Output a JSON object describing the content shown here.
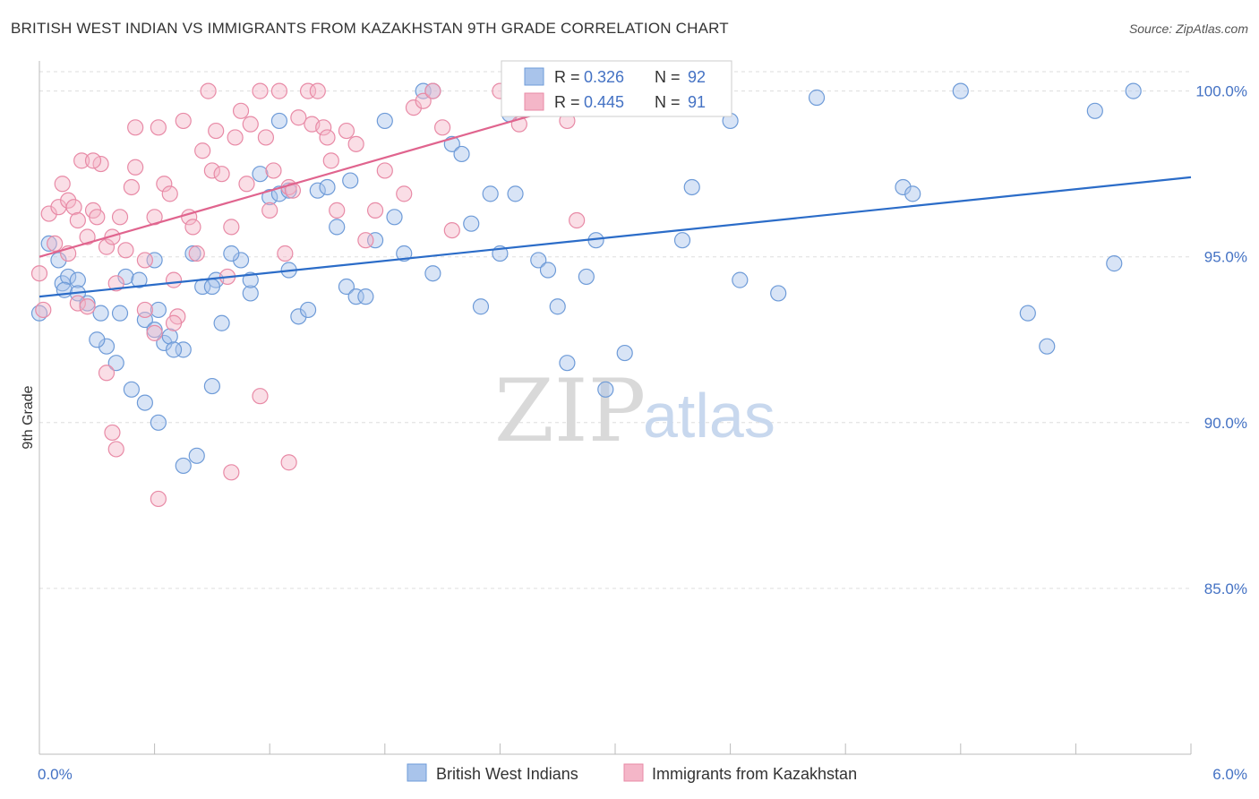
{
  "title": "BRITISH WEST INDIAN VS IMMIGRANTS FROM KAZAKHSTAN 9TH GRADE CORRELATION CHART",
  "source": "Source: ZipAtlas.com",
  "watermark": {
    "zip": "ZIP",
    "atlas": "atlas"
  },
  "legend_box": {
    "rows": [
      {
        "r_label": "R = ",
        "r_value": "0.326",
        "n_label": "N = ",
        "n_value": "92",
        "color": "#a9c4eb"
      },
      {
        "r_label": "R = ",
        "r_value": "0.445",
        "n_label": "N = ",
        "n_value": "91",
        "color": "#f4b6c8"
      }
    ]
  },
  "colors": {
    "blue_fill": "#a9c4eb",
    "blue_stroke": "#6e9bd8",
    "blue_line": "#2b6cc8",
    "pink_fill": "#f4b6c8",
    "pink_stroke": "#e88aa6",
    "pink_line": "#e0648e",
    "grid": "#dddddd",
    "tick_text": "#4472c4"
  },
  "chart_data": {
    "type": "scatter",
    "title": "BRITISH WEST INDIAN VS IMMIGRANTS FROM KAZAKHSTAN 9TH GRADE CORRELATION CHART",
    "xlabel": "",
    "ylabel": "9th Grade",
    "xlim": [
      0.0,
      6.0
    ],
    "ylim": [
      80.0,
      100.8
    ],
    "x_tick_labels": [
      "0.0%",
      "6.0%"
    ],
    "y_ticks": [
      85.0,
      90.0,
      95.0,
      100.0
    ],
    "y_tick_labels": [
      "85.0%",
      "90.0%",
      "95.0%",
      "100.0%"
    ],
    "grid": true,
    "legend_position": "bottom",
    "series": [
      {
        "name": "British West Indians",
        "color": "#a9c4eb",
        "trend": {
          "x": [
            0.0,
            6.0
          ],
          "y": [
            93.8,
            97.4
          ]
        },
        "points": [
          [
            0.05,
            95.4
          ],
          [
            0.1,
            94.9
          ],
          [
            0.12,
            94.2
          ],
          [
            0.15,
            94.4
          ],
          [
            0.2,
            94.3
          ],
          [
            0.13,
            94.0
          ],
          [
            0.2,
            93.9
          ],
          [
            0.25,
            93.6
          ],
          [
            0.32,
            93.3
          ],
          [
            0.45,
            94.4
          ],
          [
            0.52,
            94.3
          ],
          [
            0.55,
            93.1
          ],
          [
            0.6,
            94.9
          ],
          [
            0.62,
            93.4
          ],
          [
            0.65,
            92.4
          ],
          [
            0.68,
            92.6
          ],
          [
            0.75,
            92.2
          ],
          [
            0.8,
            95.1
          ],
          [
            0.85,
            94.1
          ],
          [
            0.92,
            94.3
          ],
          [
            0.95,
            93.0
          ],
          [
            1.05,
            94.9
          ],
          [
            1.1,
            93.9
          ],
          [
            1.15,
            97.5
          ],
          [
            1.2,
            96.8
          ],
          [
            1.25,
            96.9
          ],
          [
            1.3,
            97.0
          ],
          [
            1.3,
            94.6
          ],
          [
            1.35,
            93.2
          ],
          [
            1.4,
            93.4
          ],
          [
            1.45,
            97.0
          ],
          [
            1.5,
            97.1
          ],
          [
            1.55,
            95.9
          ],
          [
            1.6,
            94.1
          ],
          [
            1.65,
            93.8
          ],
          [
            1.7,
            93.8
          ],
          [
            1.75,
            95.5
          ],
          [
            1.8,
            99.1
          ],
          [
            1.85,
            96.2
          ],
          [
            1.9,
            95.1
          ],
          [
            2.0,
            100.0
          ],
          [
            2.05,
            94.5
          ],
          [
            2.15,
            98.4
          ],
          [
            2.2,
            98.1
          ],
          [
            2.25,
            96.0
          ],
          [
            2.3,
            93.5
          ],
          [
            2.35,
            96.9
          ],
          [
            2.4,
            95.1
          ],
          [
            2.45,
            99.3
          ],
          [
            2.6,
            94.9
          ],
          [
            2.65,
            94.6
          ],
          [
            2.7,
            93.5
          ],
          [
            2.75,
            91.8
          ],
          [
            2.85,
            94.4
          ],
          [
            2.9,
            95.5
          ],
          [
            3.0,
            100.0
          ],
          [
            3.05,
            92.1
          ],
          [
            3.35,
            95.5
          ],
          [
            3.4,
            97.1
          ],
          [
            3.65,
            94.3
          ],
          [
            3.85,
            93.9
          ],
          [
            4.05,
            99.8
          ],
          [
            4.5,
            97.1
          ],
          [
            4.55,
            96.9
          ],
          [
            4.8,
            100.0
          ],
          [
            5.15,
            93.3
          ],
          [
            5.25,
            92.3
          ],
          [
            5.5,
            99.4
          ],
          [
            5.6,
            94.8
          ],
          [
            5.7,
            100.0
          ],
          [
            1.0,
            95.1
          ],
          [
            0.35,
            92.3
          ],
          [
            0.4,
            91.8
          ],
          [
            0.48,
            91.0
          ],
          [
            0.55,
            90.6
          ],
          [
            0.62,
            90.0
          ],
          [
            0.82,
            89.0
          ],
          [
            0.75,
            88.7
          ],
          [
            0.9,
            91.1
          ],
          [
            1.25,
            99.1
          ],
          [
            1.62,
            97.3
          ],
          [
            2.48,
            96.9
          ],
          [
            0.3,
            92.5
          ],
          [
            0.42,
            93.3
          ],
          [
            0.7,
            92.2
          ],
          [
            2.05,
            100.0
          ],
          [
            2.95,
            91.0
          ],
          [
            0.6,
            92.8
          ],
          [
            0.9,
            94.1
          ],
          [
            1.1,
            94.3
          ],
          [
            0.0,
            93.3
          ],
          [
            3.6,
            99.1
          ]
        ]
      },
      {
        "name": "Immigrants from Kazakhstan",
        "color": "#f4b6c8",
        "trend": {
          "x": [
            0.0,
            2.95
          ],
          "y": [
            95.0,
            99.9
          ]
        },
        "points": [
          [
            0.05,
            96.3
          ],
          [
            0.1,
            96.5
          ],
          [
            0.12,
            97.2
          ],
          [
            0.15,
            96.7
          ],
          [
            0.18,
            96.5
          ],
          [
            0.2,
            96.1
          ],
          [
            0.22,
            97.9
          ],
          [
            0.25,
            95.6
          ],
          [
            0.28,
            96.4
          ],
          [
            0.3,
            96.2
          ],
          [
            0.32,
            97.8
          ],
          [
            0.35,
            95.3
          ],
          [
            0.38,
            95.6
          ],
          [
            0.4,
            94.2
          ],
          [
            0.42,
            96.2
          ],
          [
            0.45,
            95.2
          ],
          [
            0.48,
            97.1
          ],
          [
            0.5,
            98.9
          ],
          [
            0.55,
            94.9
          ],
          [
            0.6,
            96.2
          ],
          [
            0.62,
            98.9
          ],
          [
            0.65,
            97.2
          ],
          [
            0.68,
            96.9
          ],
          [
            0.7,
            94.3
          ],
          [
            0.72,
            93.2
          ],
          [
            0.75,
            99.1
          ],
          [
            0.78,
            96.2
          ],
          [
            0.8,
            95.9
          ],
          [
            0.82,
            95.1
          ],
          [
            0.85,
            98.2
          ],
          [
            0.88,
            100.0
          ],
          [
            0.9,
            97.6
          ],
          [
            0.92,
            98.8
          ],
          [
            0.95,
            97.5
          ],
          [
            0.98,
            94.4
          ],
          [
            1.0,
            95.9
          ],
          [
            1.02,
            98.6
          ],
          [
            1.05,
            99.4
          ],
          [
            1.08,
            97.2
          ],
          [
            1.1,
            99.0
          ],
          [
            1.15,
            100.0
          ],
          [
            1.18,
            98.6
          ],
          [
            1.2,
            96.4
          ],
          [
            1.22,
            97.6
          ],
          [
            1.25,
            100.0
          ],
          [
            1.28,
            95.1
          ],
          [
            1.3,
            97.1
          ],
          [
            1.32,
            97.0
          ],
          [
            1.35,
            99.2
          ],
          [
            1.4,
            100.0
          ],
          [
            1.42,
            99.0
          ],
          [
            1.45,
            100.0
          ],
          [
            1.48,
            98.9
          ],
          [
            1.5,
            98.6
          ],
          [
            1.52,
            97.9
          ],
          [
            1.55,
            96.4
          ],
          [
            1.6,
            98.8
          ],
          [
            1.65,
            98.4
          ],
          [
            1.7,
            95.5
          ],
          [
            1.75,
            96.4
          ],
          [
            1.8,
            97.6
          ],
          [
            1.9,
            96.9
          ],
          [
            1.95,
            99.5
          ],
          [
            2.0,
            99.7
          ],
          [
            2.05,
            100.0
          ],
          [
            2.1,
            98.9
          ],
          [
            2.15,
            95.8
          ],
          [
            2.4,
            100.0
          ],
          [
            2.5,
            99.0
          ],
          [
            2.55,
            100.0
          ],
          [
            2.7,
            100.0
          ],
          [
            2.75,
            99.1
          ],
          [
            2.8,
            96.1
          ],
          [
            0.08,
            95.4
          ],
          [
            0.15,
            95.1
          ],
          [
            0.2,
            93.6
          ],
          [
            0.25,
            93.5
          ],
          [
            0.35,
            91.5
          ],
          [
            0.38,
            89.7
          ],
          [
            0.4,
            89.2
          ],
          [
            0.55,
            93.4
          ],
          [
            0.6,
            92.7
          ],
          [
            0.62,
            87.7
          ],
          [
            0.7,
            93.0
          ],
          [
            1.0,
            88.5
          ],
          [
            1.15,
            90.8
          ],
          [
            1.3,
            88.8
          ],
          [
            0.0,
            94.5
          ],
          [
            0.02,
            93.4
          ],
          [
            0.5,
            97.7
          ],
          [
            0.28,
            97.9
          ]
        ]
      }
    ]
  },
  "bottom_legend": [
    {
      "label": "British West Indians",
      "color": "#a9c4eb"
    },
    {
      "label": "Immigrants from Kazakhstan",
      "color": "#f4b6c8"
    }
  ]
}
